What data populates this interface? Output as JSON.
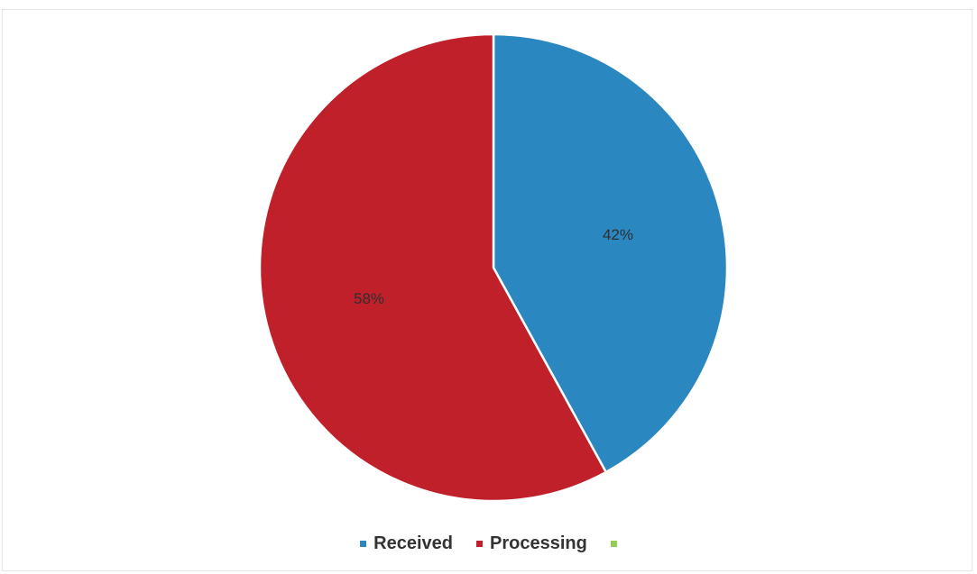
{
  "chart_data": {
    "type": "pie",
    "categories": [
      "Received",
      "Processing",
      ""
    ],
    "values": [
      42,
      58,
      0
    ],
    "value_labels": [
      "42%",
      "58%",
      ""
    ],
    "colors": [
      "#2a87c0",
      "#c0202a",
      "#8fcf52"
    ],
    "title": "",
    "legend": "bottom",
    "start_angle_deg": 0,
    "direction": "clockwise"
  }
}
